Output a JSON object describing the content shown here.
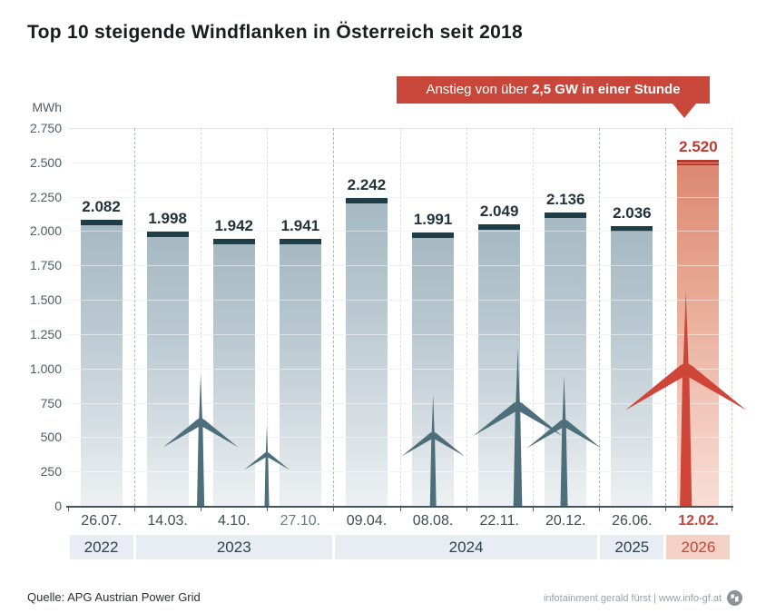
{
  "header": {
    "title": "Top 10 steigende Windflanken in Österreich seit 2018"
  },
  "callout": {
    "text_regular": "Anstieg von über",
    "text_bold": "2,5 GW in einer Stunde"
  },
  "chart_data": {
    "type": "bar",
    "title": "Top 10 steigende Windflanken in Österreich seit 2018",
    "xlabel": "",
    "ylabel": "MWh",
    "ylim": [
      0,
      2750
    ],
    "ytick_step": 250,
    "ytick_labels": [
      "2.750",
      "2.500",
      "2.250",
      "2.000",
      "1.750",
      "1.500",
      "1.250",
      "1.000",
      "750",
      "500",
      "250",
      "0"
    ],
    "categories": [
      "26.07.",
      "14.03.",
      "4.10.",
      "27.10.",
      "09.04.",
      "08.08.",
      "22.11.",
      "20.12.",
      "26.06.",
      "12.02."
    ],
    "values": [
      2082,
      1998,
      1942,
      1941,
      2242,
      1991,
      2049,
      2136,
      2036,
      2520
    ],
    "value_labels": [
      "2.082",
      "1.998",
      "1.942",
      "1.941",
      "2.242",
      "1.991",
      "2.049",
      "2.136",
      "2.036",
      "2.520"
    ],
    "highlight_index": 9,
    "muted_category_index": 3,
    "year_groups": [
      {
        "label": "2022",
        "count": 1,
        "highlight": false
      },
      {
        "label": "2023",
        "count": 3,
        "highlight": false
      },
      {
        "label": "2024",
        "count": 4,
        "highlight": false
      },
      {
        "label": "2025",
        "count": 1,
        "highlight": false
      },
      {
        "label": "2026",
        "count": 1,
        "highlight": true
      }
    ],
    "grid": true,
    "legend": "none",
    "annotation": "Anstieg von über 2,5 GW in einer Stunde"
  },
  "colors": {
    "accent_red": "#c8473a",
    "accent_red_dark": "#b5392e",
    "bar_cap": "#1f3d46",
    "turbine_gray": "#4d6e7a",
    "turbine_red": "#cf4537",
    "year_band_bg": "#e7edf2",
    "year_band_highlight_bg": "#f4d0c5",
    "gridline": "#e3e7ea",
    "axis_text": "#4d5c63"
  },
  "footer": {
    "source": "Quelle: APG Austrian Power Grid",
    "credit": "infotainment gerald fürst | www.info-gf.at"
  }
}
